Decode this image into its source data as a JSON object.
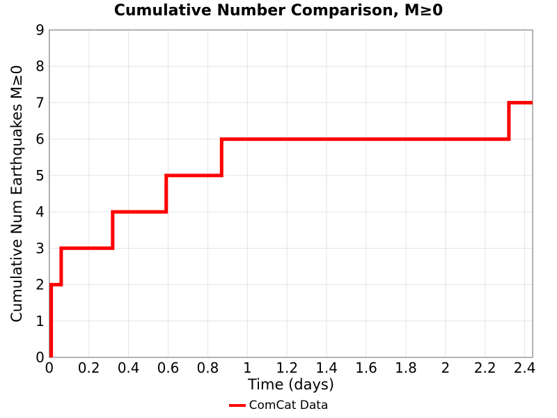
{
  "figure": {
    "title": "Cumulative Number Comparison, M≥0"
  },
  "chart_data": {
    "type": "line",
    "step_style": "post",
    "title": "Cumulative Number Comparison, M≥0",
    "xlabel": "Time (days)",
    "ylabel": "Cumulative Num Earthquakes M≥0",
    "xlim": [
      0,
      2.44
    ],
    "ylim": [
      0,
      9
    ],
    "xtick_values": [
      0,
      0.2,
      0.4,
      0.6,
      0.8,
      1,
      1.2,
      1.4,
      1.6,
      1.8,
      2,
      2.2,
      2.4
    ],
    "xtick_labels": [
      "0",
      "0.2",
      "0.4",
      "0.6",
      "0.8",
      "1",
      "1.2",
      "1.4",
      "1.6",
      "1.8",
      "2",
      "2.2",
      "2.4"
    ],
    "ytick_values": [
      0,
      1,
      2,
      3,
      4,
      5,
      6,
      7,
      8,
      9
    ],
    "ytick_labels": [
      "0",
      "1",
      "2",
      "3",
      "4",
      "5",
      "6",
      "7",
      "8",
      "9"
    ],
    "grid": true,
    "legend_position": "below-axes-center",
    "series": [
      {
        "name": "ComCat Data",
        "color": "#ff0000",
        "line_width": 5,
        "points": [
          [
            0.01,
            0
          ],
          [
            0.01,
            2
          ],
          [
            0.06,
            2
          ],
          [
            0.06,
            3
          ],
          [
            0.32,
            3
          ],
          [
            0.32,
            4
          ],
          [
            0.59,
            4
          ],
          [
            0.59,
            5
          ],
          [
            0.87,
            5
          ],
          [
            0.87,
            6
          ],
          [
            2.32,
            6
          ],
          [
            2.32,
            7
          ],
          [
            2.44,
            7
          ]
        ]
      }
    ]
  },
  "legend": {
    "items": [
      {
        "label": "ComCat Data",
        "color": "#ff0000"
      }
    ]
  },
  "colors": {
    "line": "#ff0000",
    "grid": "#e4e4e4",
    "spine": "#8a8a8a",
    "text": "#000000"
  }
}
